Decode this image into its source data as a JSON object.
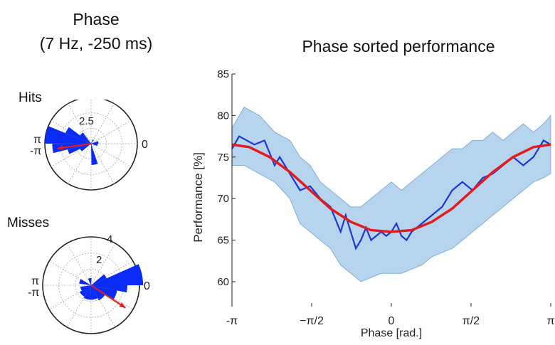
{
  "left_panel": {
    "title_line1": "Phase",
    "title_line2": "(7 Hz, -250 ms)"
  },
  "right_panel": {
    "title": "Phase sorted performance"
  },
  "chart_data": [
    {
      "type": "polar-histogram",
      "label": "Hits",
      "r_ticks": [
        "2.5",
        "5"
      ],
      "rmax": 5,
      "angle_labels": {
        "zero": "0",
        "pi": "π",
        "neg_pi": "-π"
      },
      "bars": [
        {
          "start_rad": 2.75,
          "end_rad": 3.14,
          "value": 5.0
        },
        {
          "start_rad": -3.14,
          "end_rad": -2.9,
          "value": 4.2
        },
        {
          "start_rad": 2.5,
          "end_rad": 2.75,
          "value": 3.0
        },
        {
          "start_rad": -2.9,
          "end_rad": -2.7,
          "value": 2.6
        },
        {
          "start_rad": 2.2,
          "end_rad": 2.5,
          "value": 1.5
        },
        {
          "start_rad": -2.7,
          "end_rad": -2.45,
          "value": 1.3
        },
        {
          "start_rad": -1.55,
          "end_rad": -1.25,
          "value": 2.3
        },
        {
          "start_rad": 0.0,
          "end_rad": 0.35,
          "value": 0.8
        },
        {
          "start_rad": -0.35,
          "end_rad": 0.0,
          "value": 0.7
        },
        {
          "start_rad": 0.9,
          "end_rad": 1.2,
          "value": 0.5
        }
      ],
      "mean_vector": {
        "angle_rad": -3.0,
        "length": 3.7
      },
      "colors": {
        "bars": "#0a2af5",
        "arrow": "#e41b1b"
      }
    },
    {
      "type": "polar-histogram",
      "label": "Misses",
      "r_ticks": [
        "2",
        "4"
      ],
      "rmax": 4,
      "angle_labels": {
        "zero": "0",
        "pi": "π",
        "neg_pi": "-π"
      },
      "bars": [
        {
          "start_rad": 0.0,
          "end_rad": 0.42,
          "value": 4.3
        },
        {
          "start_rad": -0.2,
          "end_rad": 0.0,
          "value": 3.0
        },
        {
          "start_rad": 0.42,
          "end_rad": 0.7,
          "value": 1.4
        },
        {
          "start_rad": -0.55,
          "end_rad": -0.2,
          "value": 2.2
        },
        {
          "start_rad": -1.1,
          "end_rad": -0.55,
          "value": 1.4
        },
        {
          "start_rad": -1.6,
          "end_rad": -1.1,
          "value": 1.2
        },
        {
          "start_rad": -2.1,
          "end_rad": -1.6,
          "value": 1.2
        },
        {
          "start_rad": -2.6,
          "end_rad": -2.1,
          "value": 1.1
        },
        {
          "start_rad": -3.0,
          "end_rad": -2.6,
          "value": 0.9
        },
        {
          "start_rad": 2.6,
          "end_rad": 3.0,
          "value": 1.0
        },
        {
          "start_rad": 1.5,
          "end_rad": 2.0,
          "value": 0.6
        }
      ],
      "mean_vector": {
        "angle_rad": -0.58,
        "length": 3.4
      },
      "colors": {
        "bars": "#0a2af5",
        "arrow": "#e41b1b"
      }
    },
    {
      "type": "line",
      "title": "Phase sorted performance",
      "xlabel": "Phase [rad.]",
      "ylabel": "Performance [%]",
      "xlim": [
        -3.14159,
        3.14159
      ],
      "ylim": [
        57,
        85
      ],
      "x_ticks": [
        {
          "value": -3.14159,
          "label": "-π"
        },
        {
          "value": -1.5708,
          "label": "−π/2"
        },
        {
          "value": 0,
          "label": "0"
        },
        {
          "value": 1.5708,
          "label": "π/2"
        },
        {
          "value": 3.14159,
          "label": "π"
        }
      ],
      "y_ticks": [
        60,
        65,
        70,
        75,
        80,
        85
      ],
      "grid": false,
      "series": [
        {
          "role": "confidence-band",
          "x": [
            -3.14,
            -2.9,
            -2.6,
            -2.3,
            -2.0,
            -1.8,
            -1.6,
            -1.4,
            -1.2,
            -1.0,
            -0.8,
            -0.6,
            -0.4,
            -0.2,
            0.0,
            0.2,
            0.4,
            0.6,
            0.8,
            1.0,
            1.2,
            1.4,
            1.6,
            1.8,
            2.0,
            2.2,
            2.4,
            2.6,
            2.8,
            3.0,
            3.14
          ],
          "upper": [
            78.5,
            81.0,
            80.0,
            78.0,
            77.0,
            75.0,
            74.0,
            72.0,
            71.0,
            70.0,
            69.0,
            69.0,
            70.0,
            71.0,
            72.0,
            71.0,
            72.0,
            73.0,
            74.0,
            75.0,
            76.0,
            76.0,
            77.0,
            77.0,
            78.0,
            77.0,
            78.0,
            79.0,
            78.0,
            79.0,
            80.0
          ],
          "lower": [
            74.0,
            74.0,
            73.0,
            72.0,
            70.0,
            67.0,
            66.0,
            65.0,
            64.0,
            62.0,
            61.0,
            60.0,
            60.5,
            61.0,
            61.0,
            61.0,
            61.5,
            62.0,
            63.0,
            63.5,
            64.0,
            65.0,
            66.0,
            67.0,
            68.0,
            69.0,
            70.0,
            71.0,
            72.0,
            72.5,
            73.0
          ],
          "color": "#a9cdea"
        },
        {
          "role": "observed",
          "x": [
            -3.14,
            -3.0,
            -2.85,
            -2.7,
            -2.5,
            -2.3,
            -2.2,
            -2.0,
            -1.8,
            -1.6,
            -1.4,
            -1.2,
            -1.0,
            -0.9,
            -0.8,
            -0.7,
            -0.6,
            -0.5,
            -0.4,
            -0.3,
            -0.2,
            -0.1,
            0.0,
            0.1,
            0.2,
            0.3,
            0.4,
            0.6,
            0.8,
            1.0,
            1.2,
            1.4,
            1.6,
            1.8,
            2.0,
            2.2,
            2.4,
            2.6,
            2.8,
            3.0,
            3.14
          ],
          "values": [
            76.0,
            77.5,
            77.0,
            76.5,
            77.0,
            74.0,
            75.0,
            73.0,
            71.0,
            71.5,
            70.0,
            69.0,
            66.0,
            68.0,
            66.0,
            64.0,
            65.0,
            66.5,
            65.0,
            65.5,
            66.0,
            65.5,
            66.0,
            67.0,
            65.5,
            65.0,
            66.0,
            67.0,
            68.0,
            69.0,
            71.0,
            72.0,
            71.0,
            72.5,
            73.0,
            74.0,
            75.0,
            74.0,
            75.0,
            77.0,
            76.5
          ],
          "color": "#1a39d6"
        },
        {
          "role": "fit",
          "x": [
            -3.14,
            -2.8,
            -2.4,
            -2.0,
            -1.6,
            -1.2,
            -0.8,
            -0.4,
            0.0,
            0.4,
            0.8,
            1.2,
            1.6,
            2.0,
            2.4,
            2.8,
            3.14
          ],
          "values": [
            76.5,
            76.2,
            75.0,
            73.2,
            71.0,
            68.8,
            67.2,
            66.2,
            66.0,
            66.2,
            67.2,
            68.8,
            71.0,
            73.2,
            75.0,
            76.2,
            76.5
          ],
          "color": "#e41b1b"
        }
      ]
    }
  ]
}
